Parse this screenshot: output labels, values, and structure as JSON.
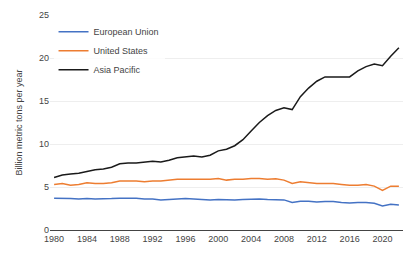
{
  "chart_data": {
    "type": "line",
    "ylabel": "Billion metric tons per year",
    "x": [
      1980,
      1981,
      1982,
      1983,
      1984,
      1985,
      1986,
      1987,
      1988,
      1989,
      1990,
      1991,
      1992,
      1993,
      1994,
      1995,
      1996,
      1997,
      1998,
      1999,
      2000,
      2001,
      2002,
      2003,
      2004,
      2005,
      2006,
      2007,
      2008,
      2009,
      2010,
      2011,
      2012,
      2013,
      2014,
      2015,
      2016,
      2017,
      2018,
      2019,
      2020,
      2021,
      2022
    ],
    "series": [
      {
        "name": "European Union",
        "color": "#4472C4",
        "values": [
          3.7,
          3.7,
          3.65,
          3.6,
          3.65,
          3.6,
          3.6,
          3.65,
          3.7,
          3.72,
          3.7,
          3.6,
          3.6,
          3.5,
          3.55,
          3.6,
          3.65,
          3.6,
          3.55,
          3.5,
          3.55,
          3.5,
          3.5,
          3.55,
          3.6,
          3.6,
          3.55,
          3.55,
          3.5,
          3.2,
          3.35,
          3.35,
          3.25,
          3.3,
          3.3,
          3.2,
          3.15,
          3.2,
          3.2,
          3.1,
          2.8,
          3.0,
          2.9
        ]
      },
      {
        "name": "United States",
        "color": "#ED7D31",
        "values": [
          5.3,
          5.4,
          5.2,
          5.3,
          5.5,
          5.4,
          5.4,
          5.5,
          5.7,
          5.7,
          5.7,
          5.6,
          5.7,
          5.7,
          5.8,
          5.9,
          5.9,
          5.9,
          5.9,
          5.9,
          6.0,
          5.8,
          5.9,
          5.9,
          6.0,
          6.0,
          5.9,
          5.95,
          5.8,
          5.4,
          5.6,
          5.5,
          5.4,
          5.4,
          5.4,
          5.3,
          5.2,
          5.2,
          5.3,
          5.1,
          4.6,
          5.1,
          5.1
        ]
      },
      {
        "name": "Asia Pacific",
        "color": "#1A1A1A",
        "values": [
          6.1,
          6.4,
          6.5,
          6.6,
          6.8,
          7.0,
          7.1,
          7.3,
          7.7,
          7.8,
          7.8,
          7.9,
          8.0,
          7.9,
          8.1,
          8.4,
          8.5,
          8.6,
          8.5,
          8.7,
          9.2,
          9.4,
          9.8,
          10.5,
          11.5,
          12.5,
          13.3,
          13.9,
          14.2,
          14.0,
          15.5,
          16.5,
          17.3,
          17.8,
          17.8,
          17.8,
          17.8,
          18.5,
          19.0,
          19.3,
          19.1,
          20.2,
          21.2
        ]
      }
    ],
    "xlim": [
      1979.5,
      2022.5
    ],
    "xticks": [
      1980,
      1984,
      1988,
      1992,
      1996,
      2000,
      2004,
      2008,
      2012,
      2016,
      2020
    ],
    "ylim": [
      0,
      25
    ],
    "yticks": [
      0,
      5,
      10,
      15,
      20,
      25
    ],
    "grid": "y",
    "legend": "upper left"
  }
}
